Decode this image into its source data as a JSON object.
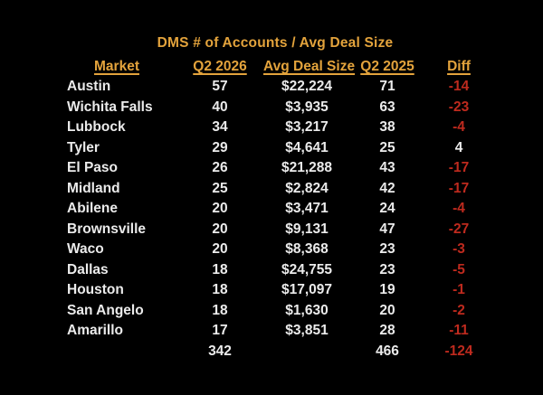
{
  "title": "DMS # of Accounts / Avg Deal Size",
  "chart_data": {
    "type": "table",
    "title": "DMS # of Accounts / Avg Deal Size",
    "columns": [
      "Market",
      "Q2 2026",
      "Avg Deal Size",
      "Q2 2025",
      "Diff"
    ],
    "rows": [
      [
        "Austin",
        57,
        "$22,224",
        71,
        -14
      ],
      [
        "Wichita Falls",
        40,
        "$3,935",
        63,
        -23
      ],
      [
        "Lubbock",
        34,
        "$3,217",
        38,
        -4
      ],
      [
        "Tyler",
        29,
        "$4,641",
        25,
        4
      ],
      [
        "El Paso",
        26,
        "$21,288",
        43,
        -17
      ],
      [
        "Midland",
        25,
        "$2,824",
        42,
        -17
      ],
      [
        "Abilene",
        20,
        "$3,471",
        24,
        -4
      ],
      [
        "Brownsville",
        20,
        "$9,131",
        47,
        -27
      ],
      [
        "Waco",
        20,
        "$8,368",
        23,
        -3
      ],
      [
        "Dallas",
        18,
        "$24,755",
        23,
        -5
      ],
      [
        "Houston",
        18,
        "$17,097",
        19,
        -1
      ],
      [
        "San Angelo",
        18,
        "$1,630",
        20,
        -2
      ],
      [
        "Amarillo",
        17,
        "$3,851",
        28,
        -11
      ]
    ],
    "totals": [
      "",
      342,
      "",
      466,
      -124
    ],
    "layout_hints": "black background, gold underlined headers, negative diff values in red, positive in white"
  },
  "colors": {
    "background": "#000000",
    "header_gold": "#E3A33C",
    "body_text": "#EBEBEB",
    "negative_red": "#BE2A1E"
  }
}
